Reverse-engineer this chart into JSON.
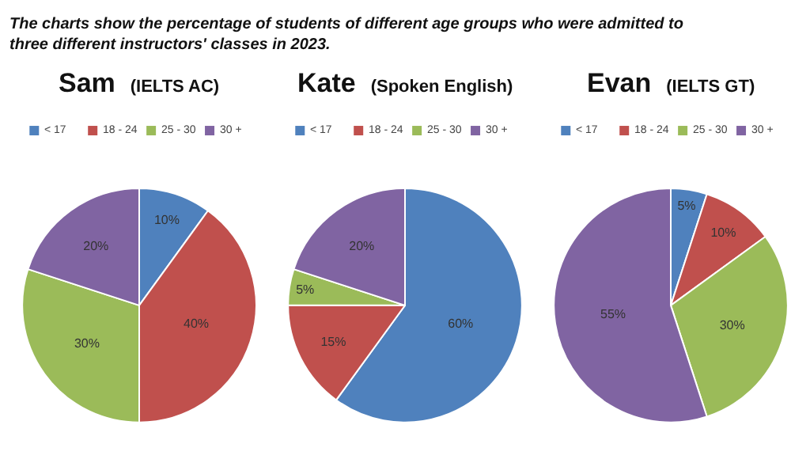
{
  "chart_data": [
    {
      "type": "pie",
      "title": "Sam",
      "subtitle": "(IELTS AC)",
      "annotations": [
        "The charts show the percentage of students of different age groups who were admitted to three different instructors' classes in 2023."
      ],
      "categories": [
        "< 17",
        "18 - 24",
        "25 - 30",
        "30 +"
      ],
      "values": [
        10,
        40,
        30,
        20
      ],
      "value_labels": [
        "10%",
        "40%",
        "30%",
        "20%"
      ],
      "colors": [
        "#4f81bd",
        "#c0504d",
        "#9bbb59",
        "#8064a2"
      ],
      "legend": "top"
    },
    {
      "type": "pie",
      "title": "Kate",
      "subtitle": "(Spoken English)",
      "categories": [
        "< 17",
        "18 - 24",
        "25 - 30",
        "30 +"
      ],
      "values": [
        60,
        15,
        5,
        20
      ],
      "value_labels": [
        "60%",
        "15%",
        "5%",
        "20%"
      ],
      "colors": [
        "#4f81bd",
        "#c0504d",
        "#9bbb59",
        "#8064a2"
      ],
      "legend": "top"
    },
    {
      "type": "pie",
      "title": "Evan",
      "subtitle": "(IELTS GT)",
      "categories": [
        "< 17",
        "18 - 24",
        "25 - 30",
        "30 +"
      ],
      "values": [
        5,
        10,
        30,
        55
      ],
      "value_labels": [
        "5%",
        "10%",
        "30%",
        "55%"
      ],
      "colors": [
        "#4f81bd",
        "#c0504d",
        "#9bbb59",
        "#8064a2"
      ],
      "legend": "top"
    }
  ]
}
